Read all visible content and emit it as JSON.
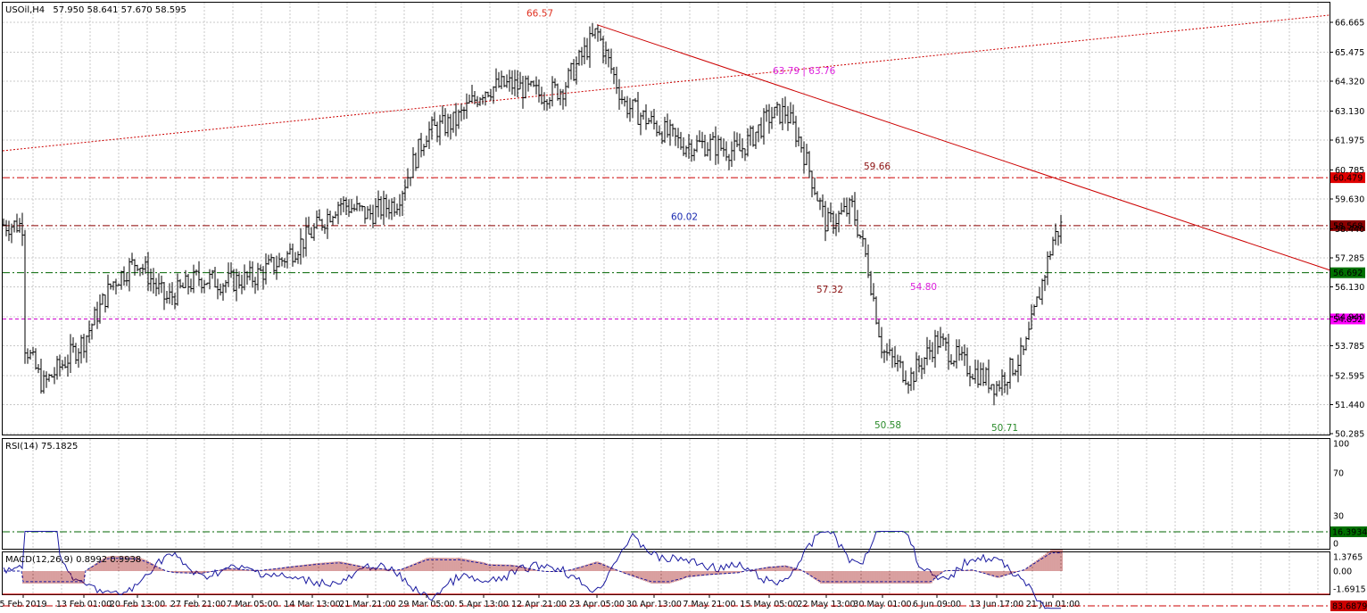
{
  "header": {
    "symbol": "USOil,H4",
    "ohlc": "57.950 58.641 57.670 58.595"
  },
  "price_axis": {
    "ticks": [
      66.665,
      65.475,
      64.32,
      63.13,
      61.975,
      60.785,
      59.63,
      58.44,
      57.285,
      56.13,
      54.94,
      53.785,
      52.595,
      51.44,
      50.285
    ],
    "ylim": [
      50.0,
      67.7
    ]
  },
  "time_axis": {
    "labels": [
      "5 Feb 2019",
      "13 Feb 01:00",
      "20 Feb 13:00",
      "27 Feb 21:00",
      "7 Mar 05:00",
      "14 Mar 13:00",
      "21 Mar 21:00",
      "29 Mar 05:00",
      "5 Apr 13:00",
      "12 Apr 21:00",
      "23 Apr 05:00",
      "30 Apr 13:00",
      "7 May 21:00",
      "15 May 05:00",
      "22 May 13:00",
      "30 May 01:00",
      "6 Jun 09:00",
      "13 Jun 17:00",
      "21 Jun 01:00"
    ]
  },
  "horizontal_levels": [
    {
      "value": 60.479,
      "label": "60.479",
      "color": "#cc0000",
      "style": "dashdot",
      "tag_bg": "#e00000"
    },
    {
      "value": 58.568,
      "label": "58.568",
      "color": "#8b0000",
      "style": "dashdot",
      "tag_bg": "#8b0000"
    },
    {
      "value": 56.692,
      "label": "56.692",
      "color": "#006400",
      "style": "dashdot",
      "tag_bg": "#007000"
    },
    {
      "value": 54.852,
      "label": "54.852",
      "color": "#cc00cc",
      "style": "dashed",
      "tag_bg": "#ff00ff"
    }
  ],
  "annotations": [
    {
      "text": "66.57",
      "color": "#e03020",
      "x": "22 Apr",
      "y": 66.9
    },
    {
      "text": "63.79 | 63.76",
      "color": "#dd22dd",
      "x": "15 May",
      "y": 64.6
    },
    {
      "text": "59.66",
      "color": "#8b1010",
      "x": "25 May",
      "y": 60.8
    },
    {
      "text": "60.02",
      "color": "#1a2ab0",
      "x": "1 May",
      "y": 58.8
    },
    {
      "text": "57.32",
      "color": "#8b1010",
      "x": "21 May",
      "y": 55.9
    },
    {
      "text": "54.80",
      "color": "#dd22dd",
      "x": "3 Jun",
      "y": 56.0
    },
    {
      "text": "50.58",
      "color": "#2a8a2a",
      "x": "29 May",
      "y": 50.5
    },
    {
      "text": "50.71",
      "color": "#2a8a2a",
      "x": "12 Jun",
      "y": 50.4
    }
  ],
  "trendlines": [
    {
      "name": "resistance-trendline",
      "from": {
        "x": "23 Apr 05:00",
        "y": 66.57
      },
      "to": {
        "x": "beyond 21 Jun",
        "y": 56.8
      },
      "color": "#cc0000",
      "style": "solid"
    },
    {
      "name": "channel-trendline",
      "from": {
        "x": "5 Feb 2019",
        "y": 61.55
      },
      "to": {
        "x": "beyond 21 Jun",
        "y": 66.95
      },
      "color": "#cc0000",
      "style": "dotted"
    }
  ],
  "rsi": {
    "title": "RSI(14) 75.1825",
    "ticks": [
      100,
      70,
      30,
      0
    ],
    "levels": [
      {
        "value": 83.6879,
        "label": "83.6879",
        "color": "#cc0000",
        "tag_bg": "#cc0000"
      },
      {
        "value": 73,
        "label": "",
        "color": "#cc0000",
        "tag_bg": ""
      },
      {
        "value": 16.3934,
        "label": "16.3934",
        "color": "#006400",
        "tag_bg": "#007000"
      }
    ]
  },
  "macd": {
    "title": "MACD(12,26,9) 0.8992 0.9938",
    "ticks": [
      "1.3765",
      "0.00",
      "-1.6915"
    ]
  },
  "chart_data": {
    "type": "ohlc",
    "title": "USOil,H4",
    "ylim": [
      50.0,
      67.7
    ],
    "series": [
      {
        "name": "USOil,H4",
        "anchors": [
          {
            "x": "5 Feb 2019",
            "y": 54.0
          },
          {
            "x": "8 Feb",
            "y": 52.2
          },
          {
            "x": "13 Feb 01:00",
            "y": 54.0
          },
          {
            "x": "17 Feb",
            "y": 56.3
          },
          {
            "x": "20 Feb 13:00",
            "y": 57.2
          },
          {
            "x": "24 Feb",
            "y": 55.6
          },
          {
            "x": "27 Feb 21:00",
            "y": 56.5
          },
          {
            "x": "3 Mar",
            "y": 56.3
          },
          {
            "x": "7 Mar 05:00",
            "y": 56.5
          },
          {
            "x": "11 Mar",
            "y": 57.2
          },
          {
            "x": "14 Mar 13:00",
            "y": 58.3
          },
          {
            "x": "18 Mar",
            "y": 59.5
          },
          {
            "x": "21 Mar 21:00",
            "y": 59.0
          },
          {
            "x": "26 Mar",
            "y": 59.5
          },
          {
            "x": "29 Mar 05:00",
            "y": 62.3
          },
          {
            "x": "2 Apr",
            "y": 62.7
          },
          {
            "x": "5 Apr 13:00",
            "y": 64.0
          },
          {
            "x": "9 Apr",
            "y": 64.2
          },
          {
            "x": "12 Apr 21:00",
            "y": 63.8
          },
          {
            "x": "18 Apr",
            "y": 64.0
          },
          {
            "x": "23 Apr 05:00",
            "y": 66.3
          },
          {
            "x": "26 Apr",
            "y": 63.4
          },
          {
            "x": "30 Apr 13:00",
            "y": 62.6
          },
          {
            "x": "3 May",
            "y": 61.8
          },
          {
            "x": "7 May 21:00",
            "y": 61.8
          },
          {
            "x": "11 May",
            "y": 61.5
          },
          {
            "x": "15 May 05:00",
            "y": 62.9
          },
          {
            "x": "18 May",
            "y": 63.1
          },
          {
            "x": "20 May",
            "y": 61.9
          },
          {
            "x": "22 May 13:00",
            "y": 58.6
          },
          {
            "x": "26 May",
            "y": 59.3
          },
          {
            "x": "28 May",
            "y": 57.1
          },
          {
            "x": "30 May 01:00",
            "y": 53.6
          },
          {
            "x": "3 Jun",
            "y": 52.5
          },
          {
            "x": "6 Jun 09:00",
            "y": 54.0
          },
          {
            "x": "10 Jun",
            "y": 53.0
          },
          {
            "x": "13 Jun 17:00",
            "y": 52.2
          },
          {
            "x": "17 Jun",
            "y": 53.5
          },
          {
            "x": "21 Jun 01:00",
            "y": 58.0
          },
          {
            "x": "22 Jun",
            "y": 58.6
          }
        ]
      }
    ]
  }
}
